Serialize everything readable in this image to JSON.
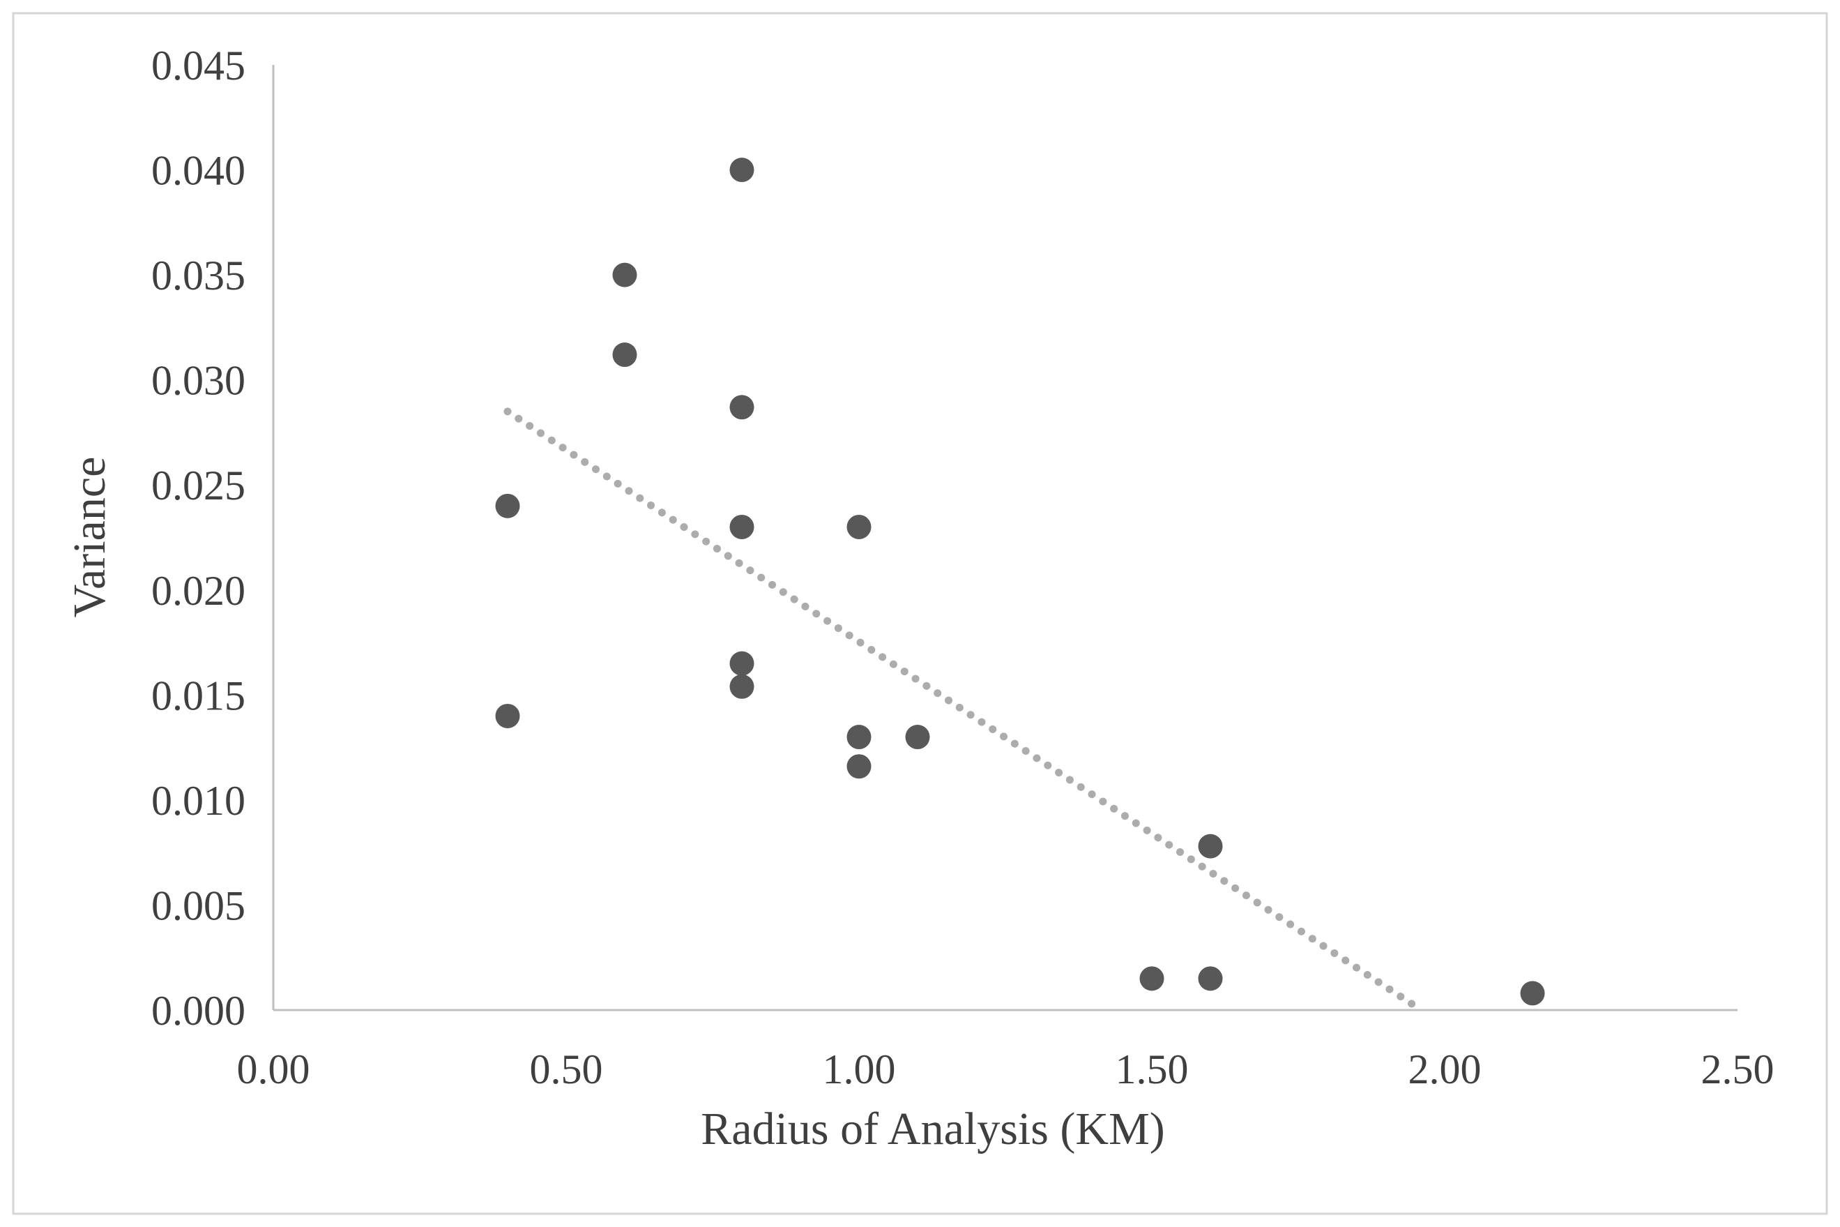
{
  "figure": {
    "background_color": "#ffffff",
    "border_color": "#d6d6d6"
  },
  "chart_data": {
    "type": "scatter",
    "title": "",
    "xlabel": "Radius of Analysis (KM)",
    "ylabel": "Variance",
    "xlim": [
      0.0,
      2.5
    ],
    "ylim": [
      0.0,
      0.045
    ],
    "grid": false,
    "legend": false,
    "x_tick_values": [
      0.0,
      0.5,
      1.0,
      1.5,
      2.0,
      2.5
    ],
    "x_tick_labels": [
      "0.00",
      "0.50",
      "1.00",
      "1.50",
      "2.00",
      "2.50"
    ],
    "y_tick_values": [
      0.0,
      0.005,
      0.01,
      0.015,
      0.02,
      0.025,
      0.03,
      0.035,
      0.04,
      0.045
    ],
    "y_tick_labels": [
      "0.000",
      "0.005",
      "0.010",
      "0.015",
      "0.020",
      "0.025",
      "0.030",
      "0.035",
      "0.040",
      "0.045"
    ],
    "points": [
      [
        0.4,
        0.024
      ],
      [
        0.4,
        0.014
      ],
      [
        0.6,
        0.035
      ],
      [
        0.6,
        0.0312
      ],
      [
        0.8,
        0.04
      ],
      [
        0.8,
        0.0287
      ],
      [
        0.8,
        0.023
      ],
      [
        0.8,
        0.0165
      ],
      [
        0.8,
        0.0154
      ],
      [
        1.0,
        0.023
      ],
      [
        1.0,
        0.013
      ],
      [
        1.0,
        0.0116
      ],
      [
        1.1,
        0.013
      ],
      [
        1.5,
        0.0015
      ],
      [
        1.6,
        0.0078
      ],
      [
        1.6,
        0.0015
      ],
      [
        2.15,
        0.0008
      ]
    ],
    "trendline": {
      "style": "dotted",
      "x_start": 0.4,
      "y_start": 0.0285,
      "x_end": 1.96,
      "y_end": 0.0
    },
    "colors": {
      "point_fill": "#585858",
      "trend_dots": "#acacac",
      "axis_line": "#bfbfbf",
      "label_text": "#3f3f3f"
    }
  }
}
